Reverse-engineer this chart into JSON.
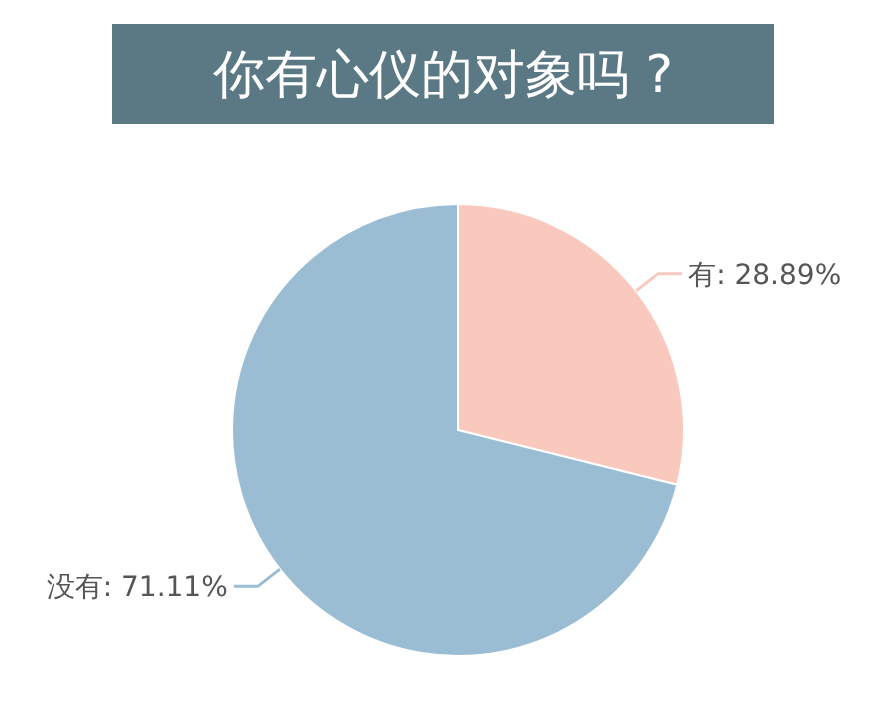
{
  "chart_data": {
    "type": "pie",
    "title": "你有心仪的对象吗 ?",
    "categories": [
      "有",
      "没有"
    ],
    "values": [
      28.89,
      71.11
    ],
    "value_labels": [
      ": 28.89%",
      ": 71.11%"
    ],
    "colors": [
      "#f9c9bd",
      "#9bbdd4"
    ]
  }
}
